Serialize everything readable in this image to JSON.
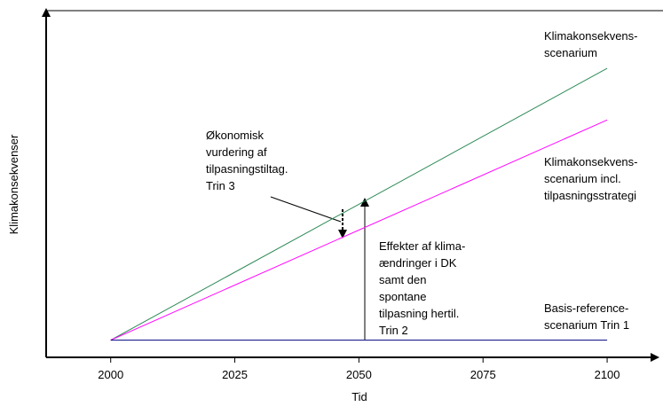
{
  "chart_data": {
    "type": "line",
    "xlabel": "Tid",
    "ylabel": "Klimakonsekvenser",
    "x": [
      2000,
      2100
    ],
    "xlim": [
      1987,
      2110
    ],
    "xticks": [
      2000,
      2025,
      2050,
      2075,
      2100
    ],
    "ylim": [
      0,
      100
    ],
    "series": [
      {
        "name": [
          "Klimakonsekvens-",
          "scenarium"
        ],
        "color": "#2e8b57",
        "values": [
          5,
          84
        ]
      },
      {
        "name": [
          "Klimakonsekvens-",
          "scenarium incl.",
          "tilpasningsstrategi"
        ],
        "color": "#ff00ff",
        "values": [
          5,
          69
        ]
      },
      {
        "name": [
          "Basis-reference-",
          "scenarium Trin 1"
        ],
        "color": "#000080",
        "values": [
          5,
          5
        ]
      }
    ],
    "annotations": [
      [
        "Økonomisk",
        "vurdering af",
        "tilpasningstiltag.",
        "Trin 3"
      ],
      [
        "Effekter af klima-",
        "ændringer i DK",
        "samt den",
        "spontane",
        "tilpasning hertil.",
        "Trin 2"
      ]
    ]
  }
}
